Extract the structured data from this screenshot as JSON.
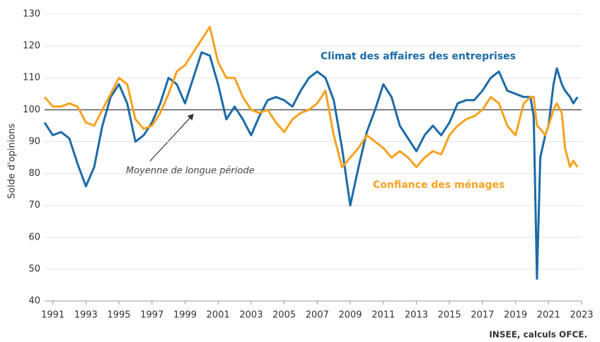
{
  "chart_data": {
    "type": "line",
    "y_label": "Solde d'opinions",
    "source": "INSEE, calculs OFCE.",
    "annotations": [
      "Climat des affaires des entreprises",
      "Confiance des ménages",
      "Moyenne de longue période"
    ],
    "reference_value": 100,
    "x": [
      1990.5,
      1991,
      1991.5,
      1992,
      1992.5,
      1993,
      1993.5,
      1994,
      1994.5,
      1995,
      1995.5,
      1996,
      1996.5,
      1997,
      1997.5,
      1998,
      1998.5,
      1999,
      1999.5,
      2000,
      2000.5,
      2001,
      2001.5,
      2002,
      2002.5,
      2003,
      2003.5,
      2004,
      2004.5,
      2005,
      2005.5,
      2006,
      2006.5,
      2007,
      2007.5,
      2008,
      2008.5,
      2009,
      2009.5,
      2010,
      2010.5,
      2011,
      2011.5,
      2012,
      2012.5,
      2013,
      2013.5,
      2014,
      2014.5,
      2015,
      2015.5,
      2016,
      2016.5,
      2017,
      2017.5,
      2018,
      2018.5,
      2019,
      2019.5,
      2019.9,
      2020.1,
      2020.3,
      2020.5,
      2020.8,
      2021,
      2021.3,
      2021.5,
      2021.8,
      2022,
      2022.3,
      2022.5,
      2022.75
    ],
    "series": [
      {
        "name": "Climat des affaires des entreprises",
        "color": "#1c6aa6",
        "values": [
          96,
          92,
          93,
          91,
          83,
          76,
          82,
          95,
          104,
          108,
          102,
          90,
          92,
          96,
          102,
          110,
          108,
          102,
          110,
          118,
          117,
          108,
          97,
          101,
          97,
          92,
          98,
          103,
          104,
          103,
          101,
          106,
          110,
          112,
          110,
          103,
          88,
          70,
          82,
          93,
          100,
          108,
          104,
          95,
          91,
          87,
          92,
          95,
          92,
          96,
          102,
          103,
          103,
          106,
          110,
          112,
          106,
          105,
          104,
          104,
          98,
          47,
          85,
          92,
          95,
          108,
          113,
          108,
          106,
          104,
          102,
          104
        ]
      },
      {
        "name": "Confiance des ménages",
        "color": "#f5a21f",
        "values": [
          104,
          101,
          101,
          102,
          101,
          96,
          95,
          100,
          105,
          110,
          108,
          97,
          94,
          95,
          99,
          105,
          112,
          114,
          118,
          122,
          126,
          115,
          110,
          110,
          104,
          100,
          99,
          100,
          96,
          93,
          97,
          99,
          100,
          102,
          106,
          92,
          82,
          85,
          88,
          92,
          90,
          88,
          85,
          87,
          85,
          82,
          85,
          87,
          86,
          92,
          95,
          97,
          98,
          100,
          104,
          102,
          95,
          92,
          102,
          104,
          104,
          95,
          94,
          92,
          95,
          100,
          102,
          99,
          88,
          82,
          84,
          82
        ]
      }
    ],
    "xlim": [
      1990.5,
      2023
    ],
    "ylim": [
      40,
      130
    ],
    "xticks": [
      1991,
      1993,
      1995,
      1997,
      1999,
      2001,
      2003,
      2005,
      2007,
      2009,
      2011,
      2013,
      2015,
      2017,
      2019,
      2021,
      2023
    ],
    "yticks": [
      40,
      50,
      60,
      70,
      80,
      90,
      100,
      110,
      120,
      130
    ]
  }
}
